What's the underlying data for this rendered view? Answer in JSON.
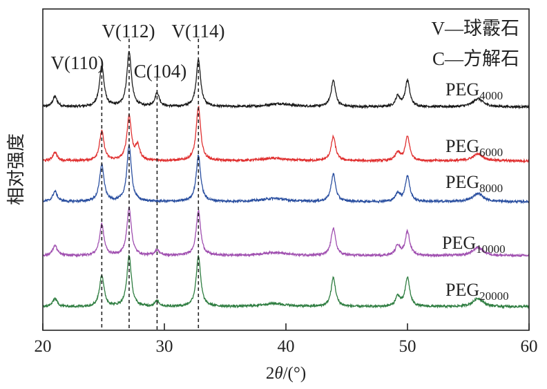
{
  "chart_data": {
    "type": "line",
    "title": "",
    "xlabel": "2θ/(°)",
    "xlabel_parts": {
      "prefix": "2",
      "italic": "θ",
      "suffix": "/(°)"
    },
    "ylabel": "相对强度",
    "xlim": [
      20,
      60
    ],
    "ylim": [
      0,
      100
    ],
    "xticks": [
      20,
      30,
      40,
      50,
      60
    ],
    "grid": false,
    "legend_text": [
      "V—球霰石",
      "C—方解石"
    ],
    "legend_placement": "top-right",
    "reference_lines": [
      {
        "x": 24.85,
        "label": "V(110)"
      },
      {
        "x": 27.1,
        "label": "V(112)"
      },
      {
        "x": 29.4,
        "label": "C(104)"
      },
      {
        "x": 32.8,
        "label": "V(114)"
      }
    ],
    "series": [
      {
        "name": "PEG4000",
        "base": "PEG",
        "sub": "4000",
        "color": "#1a1a1a",
        "offset": 69.5,
        "peaks": [
          [
            21.0,
            3.2
          ],
          [
            24.85,
            12.9
          ],
          [
            27.1,
            17.2
          ],
          [
            29.4,
            4.3
          ],
          [
            32.8,
            14.6
          ],
          [
            39.5,
            1.0
          ],
          [
            43.9,
            8.2
          ],
          [
            49.2,
            3.2
          ],
          [
            50.0,
            8.2
          ],
          [
            55.8,
            2.6
          ]
        ]
      },
      {
        "name": "PEG6000",
        "base": "PEG",
        "sub": "6000",
        "color": "#e03030",
        "offset": 52.7,
        "peaks": [
          [
            21.0,
            2.6
          ],
          [
            24.85,
            9.2
          ],
          [
            27.1,
            14.0
          ],
          [
            27.8,
            4.3
          ],
          [
            32.8,
            16.8
          ],
          [
            39.0,
            0.8
          ],
          [
            43.9,
            7.5
          ],
          [
            49.2,
            2.6
          ],
          [
            50.0,
            7.5
          ],
          [
            55.8,
            2.2
          ]
        ]
      },
      {
        "name": "PEG8000",
        "base": "PEG",
        "sub": "8000",
        "color": "#2a4fa0",
        "offset": 40.0,
        "peaks": [
          [
            21.0,
            3.2
          ],
          [
            24.85,
            11.6
          ],
          [
            27.1,
            17.6
          ],
          [
            32.8,
            14.4
          ],
          [
            39.0,
            1.0
          ],
          [
            43.9,
            8.6
          ],
          [
            49.2,
            2.6
          ],
          [
            50.0,
            8.0
          ],
          [
            55.8,
            2.6
          ]
        ]
      },
      {
        "name": "PEG10000",
        "base": "PEG",
        "sub": "10000",
        "color": "#a050b0",
        "offset": 23.2,
        "peaks": [
          [
            21.0,
            3.2
          ],
          [
            24.85,
            9.7
          ],
          [
            27.1,
            15.0
          ],
          [
            29.4,
            1.7
          ],
          [
            32.8,
            14.0
          ],
          [
            39.0,
            1.0
          ],
          [
            43.9,
            8.6
          ],
          [
            49.2,
            3.2
          ],
          [
            50.0,
            7.5
          ],
          [
            55.8,
            2.6
          ]
        ]
      },
      {
        "name": "PEG20000",
        "base": "PEG",
        "sub": "20000",
        "color": "#2e7d40",
        "offset": 7.3,
        "peaks": [
          [
            21.0,
            2.6
          ],
          [
            24.85,
            9.9
          ],
          [
            27.1,
            15.9
          ],
          [
            29.4,
            1.7
          ],
          [
            32.8,
            15.9
          ],
          [
            39.0,
            1.0
          ],
          [
            43.9,
            9.0
          ],
          [
            49.2,
            3.2
          ],
          [
            50.0,
            9.0
          ],
          [
            55.8,
            2.6
          ]
        ]
      }
    ]
  }
}
